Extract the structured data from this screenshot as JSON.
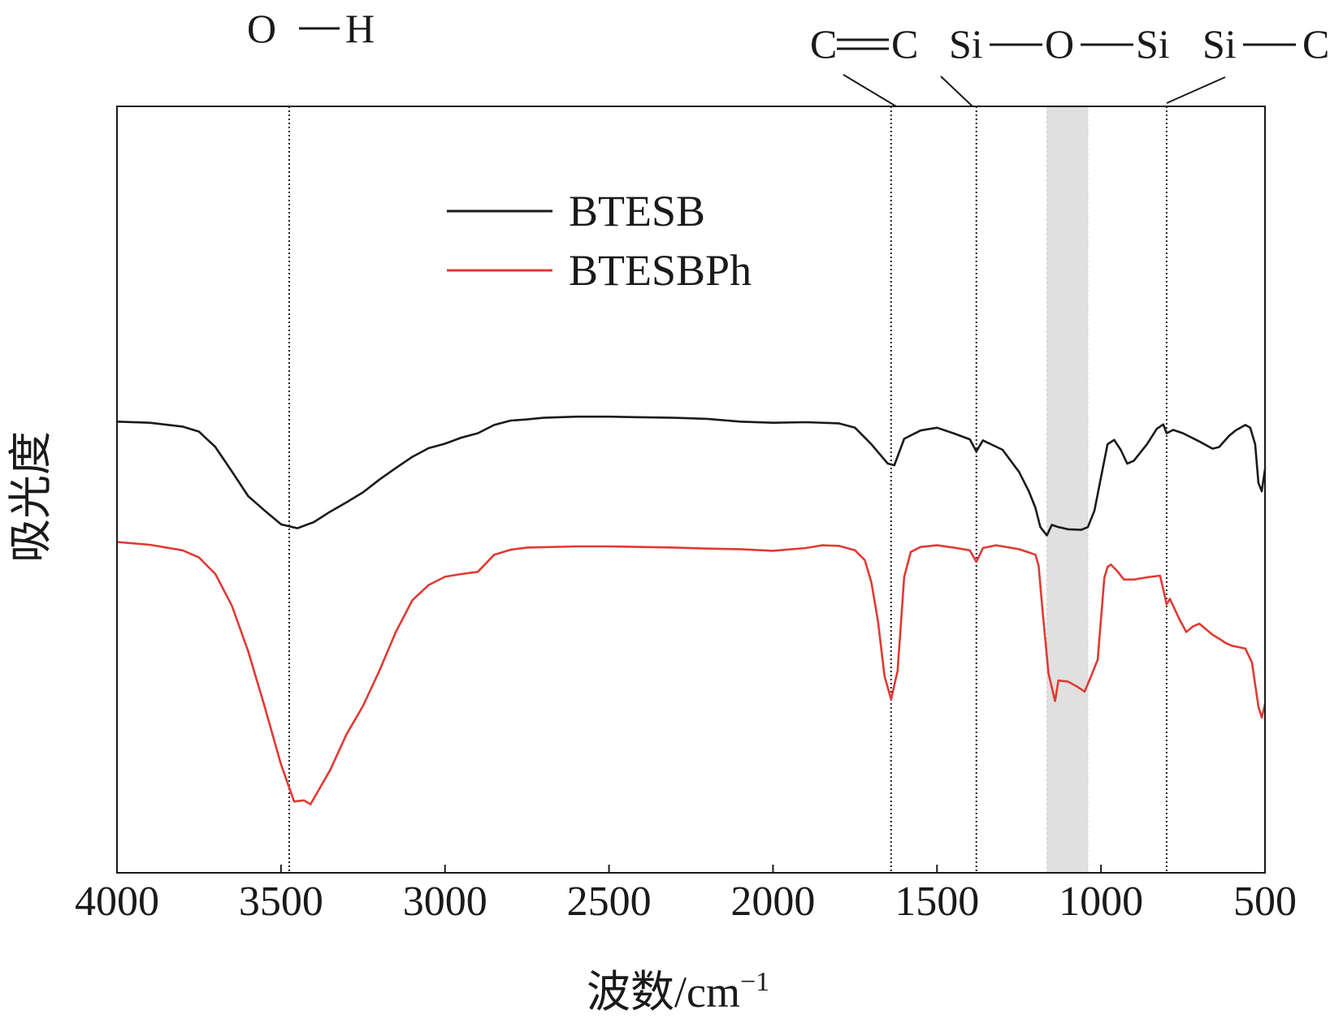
{
  "chart_data": {
    "type": "line",
    "title": "",
    "xlabel": "波数/cm",
    "xlabel_sup": "−1",
    "ylabel": "吸光度",
    "xlim": [
      4000,
      500
    ],
    "ylim": [
      0,
      1
    ],
    "x_ticks": [
      4000,
      3500,
      3000,
      2500,
      2000,
      1500,
      1000,
      500
    ],
    "x_tick_labels": [
      "4000",
      "3500",
      "3000",
      "2500",
      "2000",
      "1500",
      "1000",
      "500"
    ],
    "y_ticks_shown": false,
    "grid": false,
    "legend_position": "top-left",
    "series": [
      {
        "name": "BTESB",
        "color": "#1a1a1a",
        "points": [
          [
            4000,
            0.751
          ],
          [
            3900,
            0.749
          ],
          [
            3800,
            0.742
          ],
          [
            3750,
            0.733
          ],
          [
            3700,
            0.705
          ],
          [
            3650,
            0.661
          ],
          [
            3600,
            0.616
          ],
          [
            3550,
            0.59
          ],
          [
            3500,
            0.565
          ],
          [
            3450,
            0.558
          ],
          [
            3400,
            0.569
          ],
          [
            3350,
            0.588
          ],
          [
            3300,
            0.605
          ],
          [
            3250,
            0.623
          ],
          [
            3200,
            0.646
          ],
          [
            3150,
            0.667
          ],
          [
            3100,
            0.687
          ],
          [
            3050,
            0.703
          ],
          [
            3000,
            0.711
          ],
          [
            2950,
            0.722
          ],
          [
            2900,
            0.73
          ],
          [
            2850,
            0.745
          ],
          [
            2800,
            0.753
          ],
          [
            2750,
            0.755
          ],
          [
            2700,
            0.758
          ],
          [
            2600,
            0.76
          ],
          [
            2500,
            0.76
          ],
          [
            2400,
            0.759
          ],
          [
            2300,
            0.758
          ],
          [
            2200,
            0.756
          ],
          [
            2100,
            0.751
          ],
          [
            2000,
            0.749
          ],
          [
            1900,
            0.75
          ],
          [
            1800,
            0.748
          ],
          [
            1750,
            0.74
          ],
          [
            1700,
            0.71
          ],
          [
            1650,
            0.675
          ],
          [
            1630,
            0.672
          ],
          [
            1600,
            0.72
          ],
          [
            1550,
            0.735
          ],
          [
            1500,
            0.74
          ],
          [
            1450,
            0.73
          ],
          [
            1400,
            0.719
          ],
          [
            1380,
            0.697
          ],
          [
            1360,
            0.717
          ],
          [
            1300,
            0.7
          ],
          [
            1250,
            0.66
          ],
          [
            1220,
            0.625
          ],
          [
            1200,
            0.595
          ],
          [
            1185,
            0.56
          ],
          [
            1165,
            0.545
          ],
          [
            1150,
            0.564
          ],
          [
            1130,
            0.56
          ],
          [
            1100,
            0.556
          ],
          [
            1060,
            0.555
          ],
          [
            1040,
            0.56
          ],
          [
            1020,
            0.59
          ],
          [
            1000,
            0.65
          ],
          [
            980,
            0.71
          ],
          [
            960,
            0.718
          ],
          [
            940,
            0.7
          ],
          [
            920,
            0.675
          ],
          [
            900,
            0.68
          ],
          [
            860,
            0.71
          ],
          [
            830,
            0.738
          ],
          [
            810,
            0.746
          ],
          [
            800,
            0.73
          ],
          [
            780,
            0.736
          ],
          [
            750,
            0.73
          ],
          [
            700,
            0.715
          ],
          [
            660,
            0.702
          ],
          [
            640,
            0.705
          ],
          [
            610,
            0.725
          ],
          [
            590,
            0.735
          ],
          [
            560,
            0.745
          ],
          [
            545,
            0.74
          ],
          [
            530,
            0.71
          ],
          [
            520,
            0.64
          ],
          [
            510,
            0.625
          ],
          [
            500,
            0.665
          ]
        ]
      },
      {
        "name": "BTESBPh",
        "color": "#e03a34",
        "points": [
          [
            4000,
            0.533
          ],
          [
            3900,
            0.528
          ],
          [
            3800,
            0.518
          ],
          [
            3750,
            0.505
          ],
          [
            3700,
            0.475
          ],
          [
            3650,
            0.418
          ],
          [
            3600,
            0.335
          ],
          [
            3550,
            0.235
          ],
          [
            3500,
            0.13
          ],
          [
            3460,
            0.063
          ],
          [
            3430,
            0.065
          ],
          [
            3410,
            0.058
          ],
          [
            3350,
            0.12
          ],
          [
            3300,
            0.185
          ],
          [
            3250,
            0.236
          ],
          [
            3200,
            0.3
          ],
          [
            3150,
            0.37
          ],
          [
            3100,
            0.427
          ],
          [
            3050,
            0.455
          ],
          [
            3000,
            0.47
          ],
          [
            2950,
            0.475
          ],
          [
            2900,
            0.479
          ],
          [
            2850,
            0.51
          ],
          [
            2800,
            0.519
          ],
          [
            2750,
            0.523
          ],
          [
            2600,
            0.525
          ],
          [
            2500,
            0.525
          ],
          [
            2400,
            0.524
          ],
          [
            2300,
            0.523
          ],
          [
            2200,
            0.521
          ],
          [
            2100,
            0.52
          ],
          [
            2000,
            0.517
          ],
          [
            1900,
            0.522
          ],
          [
            1850,
            0.527
          ],
          [
            1800,
            0.526
          ],
          [
            1750,
            0.518
          ],
          [
            1720,
            0.5
          ],
          [
            1700,
            0.46
          ],
          [
            1680,
            0.39
          ],
          [
            1660,
            0.29
          ],
          [
            1640,
            0.248
          ],
          [
            1620,
            0.3
          ],
          [
            1600,
            0.47
          ],
          [
            1580,
            0.515
          ],
          [
            1550,
            0.524
          ],
          [
            1500,
            0.527
          ],
          [
            1450,
            0.523
          ],
          [
            1400,
            0.518
          ],
          [
            1380,
            0.497
          ],
          [
            1360,
            0.522
          ],
          [
            1320,
            0.527
          ],
          [
            1250,
            0.52
          ],
          [
            1200,
            0.51
          ],
          [
            1190,
            0.49
          ],
          [
            1180,
            0.42
          ],
          [
            1160,
            0.295
          ],
          [
            1140,
            0.245
          ],
          [
            1130,
            0.282
          ],
          [
            1100,
            0.28
          ],
          [
            1070,
            0.27
          ],
          [
            1050,
            0.262
          ],
          [
            1030,
            0.29
          ],
          [
            1010,
            0.32
          ],
          [
            990,
            0.468
          ],
          [
            980,
            0.488
          ],
          [
            970,
            0.492
          ],
          [
            950,
            0.48
          ],
          [
            930,
            0.465
          ],
          [
            900,
            0.465
          ],
          [
            860,
            0.469
          ],
          [
            820,
            0.472
          ],
          [
            810,
            0.447
          ],
          [
            800,
            0.42
          ],
          [
            790,
            0.43
          ],
          [
            760,
            0.392
          ],
          [
            740,
            0.37
          ],
          [
            720,
            0.38
          ],
          [
            700,
            0.385
          ],
          [
            680,
            0.375
          ],
          [
            660,
            0.365
          ],
          [
            640,
            0.358
          ],
          [
            620,
            0.35
          ],
          [
            600,
            0.345
          ],
          [
            560,
            0.34
          ],
          [
            540,
            0.315
          ],
          [
            520,
            0.235
          ],
          [
            510,
            0.215
          ],
          [
            500,
            0.24
          ]
        ]
      }
    ],
    "reference_lines": [
      {
        "x": 3475,
        "label": "O",
        "label2": "H",
        "bond": "single"
      },
      {
        "x": 1640,
        "label": "C",
        "label2": "C",
        "bond": "double"
      },
      {
        "x": 1380,
        "label": "Si",
        "label2": "O",
        "label3": "Si",
        "bond": "single"
      },
      {
        "x": 800,
        "label": "Si",
        "label2": "C",
        "bond": "single"
      }
    ],
    "shaded_region": [
      1165,
      1040
    ],
    "shaded_color": "#e0e0e0"
  }
}
